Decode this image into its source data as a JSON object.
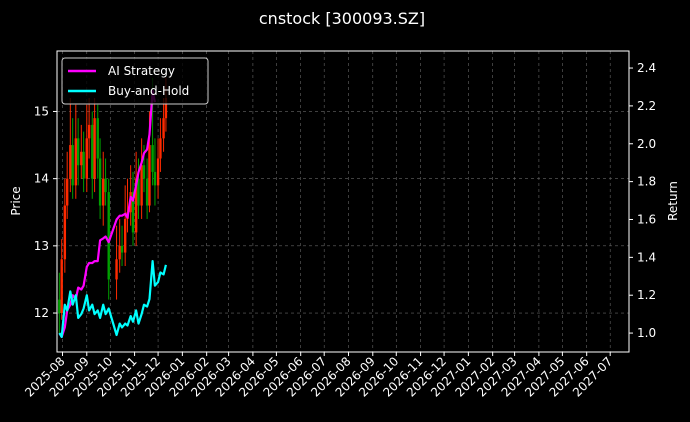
{
  "chart_data": {
    "type": "line",
    "title": "cnstock [300093.SZ]",
    "ylabel_left": "Price",
    "ylabel_right": "Return",
    "xlim": [
      "2025-07-25",
      "2027-07-25"
    ],
    "ylim_left": [
      11.42,
      15.9
    ],
    "ylim_right": [
      0.9,
      2.49
    ],
    "left_ticks": [
      12,
      13,
      14,
      15
    ],
    "right_ticks": [
      1.0,
      1.2,
      1.4,
      1.6,
      1.8,
      2.0,
      2.2,
      2.4
    ],
    "x_tick_labels": [
      "2025-08",
      "2025-09",
      "2025-10",
      "2025-11",
      "2025-12",
      "2026-01",
      "2026-02",
      "2026-03",
      "2026-04",
      "2026-05",
      "2026-06",
      "2026-07",
      "2026-08",
      "2026-09",
      "2026-10",
      "2026-11",
      "2026-12",
      "2027-01",
      "2027-02",
      "2027-03",
      "2027-04",
      "2027-05",
      "2027-06",
      "2027-07"
    ],
    "grid": true,
    "legend_position": "top-left",
    "colors": {
      "background": "#000000",
      "ai_strategy": "#ff00ff",
      "buy_and_hold": "#00ffff",
      "candle_up": "#ff2a00",
      "candle_down": "#00a000",
      "grid": "#666666"
    },
    "series": [
      {
        "name": "AI Strategy",
        "axis": "right",
        "x": [
          "2025-07-28",
          "2025-07-31",
          "2025-08-04",
          "2025-08-07",
          "2025-08-11",
          "2025-08-14",
          "2025-08-18",
          "2025-08-21",
          "2025-08-25",
          "2025-08-28",
          "2025-09-01",
          "2025-09-04",
          "2025-09-08",
          "2025-09-11",
          "2025-09-15",
          "2025-09-18",
          "2025-09-22",
          "2025-09-25",
          "2025-09-29",
          "2025-10-09",
          "2025-10-13",
          "2025-10-16",
          "2025-10-20",
          "2025-10-23",
          "2025-10-27",
          "2025-10-30",
          "2025-11-03",
          "2025-11-06",
          "2025-11-10",
          "2025-11-13",
          "2025-11-17",
          "2025-11-20",
          "2025-11-24",
          "2025-11-27"
        ],
        "values": [
          1.0,
          0.98,
          1.03,
          1.12,
          1.15,
          1.2,
          1.18,
          1.24,
          1.23,
          1.25,
          1.35,
          1.37,
          1.37,
          1.38,
          1.38,
          1.49,
          1.5,
          1.51,
          1.48,
          1.6,
          1.62,
          1.62,
          1.63,
          1.61,
          1.72,
          1.7,
          1.78,
          1.85,
          1.9,
          1.95,
          1.97,
          2.05,
          2.28,
          2.22
        ]
      },
      {
        "name": "Buy-and-Hold",
        "axis": "right",
        "x": [
          "2025-07-28",
          "2025-07-31",
          "2025-08-04",
          "2025-08-07",
          "2025-08-11",
          "2025-08-14",
          "2025-08-18",
          "2025-08-21",
          "2025-08-25",
          "2025-08-28",
          "2025-09-01",
          "2025-09-04",
          "2025-09-08",
          "2025-09-11",
          "2025-09-15",
          "2025-09-18",
          "2025-09-22",
          "2025-09-25",
          "2025-09-29",
          "2025-10-09",
          "2025-10-13",
          "2025-10-16",
          "2025-10-20",
          "2025-10-23",
          "2025-10-27",
          "2025-10-30",
          "2025-11-03",
          "2025-11-06",
          "2025-11-10",
          "2025-11-13",
          "2025-11-17",
          "2025-11-20",
          "2025-11-24",
          "2025-11-27",
          "2025-12-01",
          "2025-12-04",
          "2025-12-08",
          "2025-12-11"
        ],
        "values": [
          1.0,
          0.98,
          1.15,
          1.12,
          1.22,
          1.15,
          1.2,
          1.08,
          1.1,
          1.13,
          1.2,
          1.12,
          1.15,
          1.1,
          1.12,
          1.08,
          1.15,
          1.1,
          1.13,
          0.99,
          1.05,
          1.03,
          1.05,
          1.04,
          1.09,
          1.06,
          1.12,
          1.05,
          1.1,
          1.15,
          1.14,
          1.18,
          1.38,
          1.25,
          1.27,
          1.32,
          1.31,
          1.36
        ]
      }
    ],
    "candles": {
      "x": [
        "2025-07-28",
        "2025-07-31",
        "2025-08-04",
        "2025-08-07",
        "2025-08-11",
        "2025-08-14",
        "2025-08-18",
        "2025-08-21",
        "2025-08-25",
        "2025-08-28",
        "2025-09-01",
        "2025-09-04",
        "2025-09-08",
        "2025-09-11",
        "2025-09-15",
        "2025-09-18",
        "2025-09-22",
        "2025-09-25",
        "2025-09-29",
        "2025-10-09",
        "2025-10-13",
        "2025-10-16",
        "2025-10-20",
        "2025-10-23",
        "2025-10-27",
        "2025-10-30",
        "2025-11-03",
        "2025-11-06",
        "2025-11-10",
        "2025-11-13",
        "2025-11-17",
        "2025-11-20",
        "2025-11-24",
        "2025-11-27",
        "2025-12-01",
        "2025-12-04",
        "2025-12-08",
        "2025-12-11"
      ],
      "open": [
        12.2,
        12.0,
        12.8,
        13.6,
        14.0,
        14.5,
        13.9,
        14.6,
        14.2,
        14.4,
        14.0,
        14.6,
        14.8,
        14.0,
        14.9,
        14.3,
        13.6,
        14.0,
        13.8,
        12.5,
        12.8,
        13.0,
        12.9,
        13.4,
        13.5,
        13.8,
        13.2,
        14.0,
        13.6,
        14.2,
        14.0,
        13.6,
        14.5,
        14.1,
        13.9,
        14.3,
        14.6,
        14.9
      ],
      "close": [
        12.0,
        12.8,
        13.6,
        14.0,
        14.5,
        13.9,
        14.6,
        14.2,
        14.4,
        14.0,
        14.6,
        14.8,
        14.0,
        14.9,
        14.3,
        13.6,
        14.0,
        13.8,
        12.5,
        12.8,
        13.0,
        12.9,
        13.4,
        13.5,
        13.8,
        13.2,
        14.0,
        13.6,
        14.2,
        14.0,
        13.6,
        14.5,
        14.1,
        13.9,
        14.3,
        14.6,
        14.9,
        15.2
      ],
      "high": [
        12.6,
        13.1,
        14.0,
        14.4,
        15.2,
        14.9,
        15.1,
        14.9,
        14.8,
        14.7,
        15.1,
        15.2,
        15.0,
        15.2,
        15.1,
        14.6,
        14.4,
        14.3,
        14.0,
        13.3,
        13.4,
        13.3,
        13.9,
        14.0,
        14.2,
        14.1,
        14.4,
        14.3,
        14.6,
        14.5,
        14.3,
        15.0,
        15.5,
        14.6,
        14.6,
        14.9,
        15.2,
        15.5
      ],
      "low": [
        11.7,
        11.9,
        12.6,
        13.4,
        13.8,
        13.7,
        13.7,
        13.9,
        14.0,
        13.8,
        13.8,
        14.3,
        13.7,
        13.8,
        14.0,
        13.4,
        13.3,
        13.6,
        12.2,
        12.2,
        12.6,
        12.7,
        12.7,
        13.2,
        13.3,
        13.0,
        13.0,
        13.4,
        13.4,
        13.8,
        13.4,
        13.5,
        13.9,
        13.6,
        13.7,
        14.1,
        14.4,
        14.7
      ]
    }
  }
}
